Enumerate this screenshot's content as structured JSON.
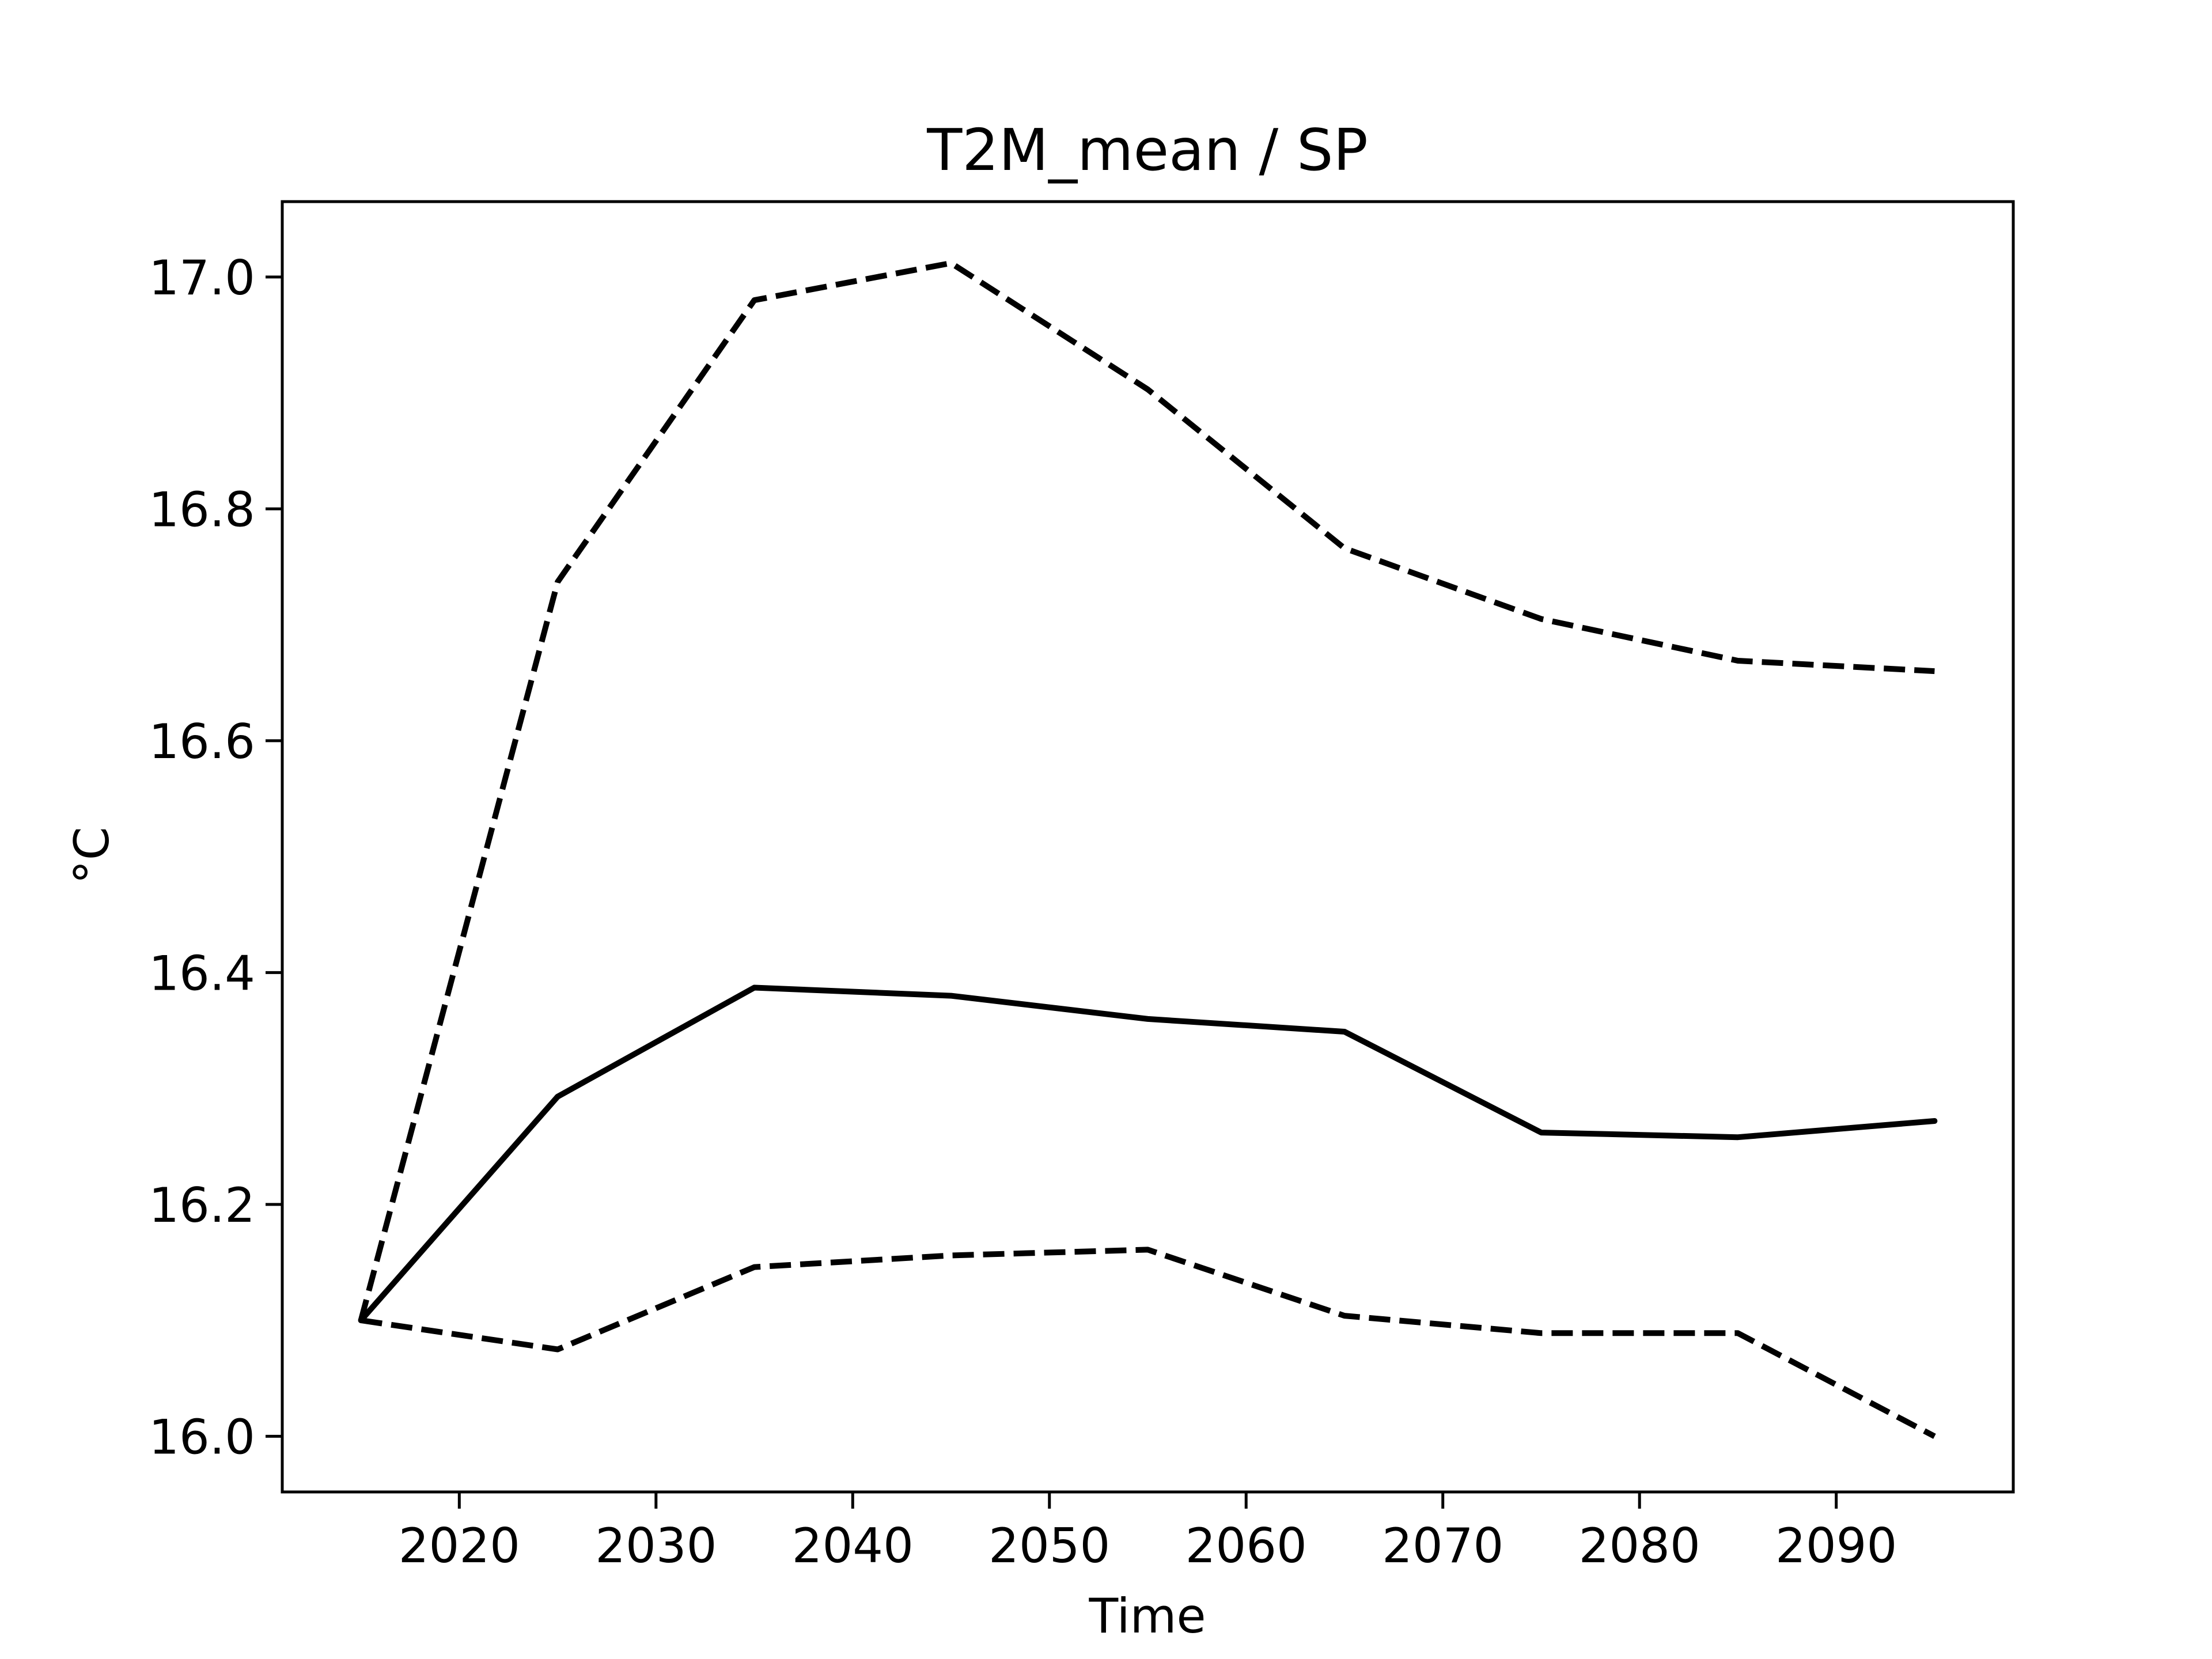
{
  "chart_data": {
    "type": "line",
    "title": "T2M_mean / SP",
    "xlabel": "Time",
    "ylabel": "°C",
    "xlim": [
      2011,
      2099
    ],
    "ylim": [
      15.952,
      17.065
    ],
    "xticks": [
      2020,
      2030,
      2040,
      2050,
      2060,
      2070,
      2080,
      2090
    ],
    "xtick_labels": [
      "2020",
      "2030",
      "2040",
      "2050",
      "2060",
      "2070",
      "2080",
      "2090"
    ],
    "yticks": [
      16.0,
      16.2,
      16.4,
      16.6,
      16.8,
      17.0
    ],
    "ytick_labels": [
      "16.0",
      "16.2",
      "16.4",
      "16.6",
      "16.8",
      "17.0"
    ],
    "grid": false,
    "x": [
      2015,
      2025,
      2035,
      2045,
      2055,
      2065,
      2075,
      2085,
      2095
    ],
    "series": [
      {
        "style": "solid",
        "color": "#000000",
        "values": [
          16.1,
          16.293,
          16.387,
          16.38,
          16.36,
          16.349,
          16.262,
          16.258,
          16.272
        ]
      },
      {
        "style": "dashed",
        "color": "#000000",
        "values": [
          16.1,
          16.737,
          16.98,
          17.012,
          16.903,
          16.766,
          16.705,
          16.669,
          16.66
        ]
      },
      {
        "style": "dashed",
        "color": "#000000",
        "values": [
          16.1,
          16.075,
          16.146,
          16.156,
          16.161,
          16.104,
          16.089,
          16.089,
          16.0
        ]
      }
    ]
  }
}
